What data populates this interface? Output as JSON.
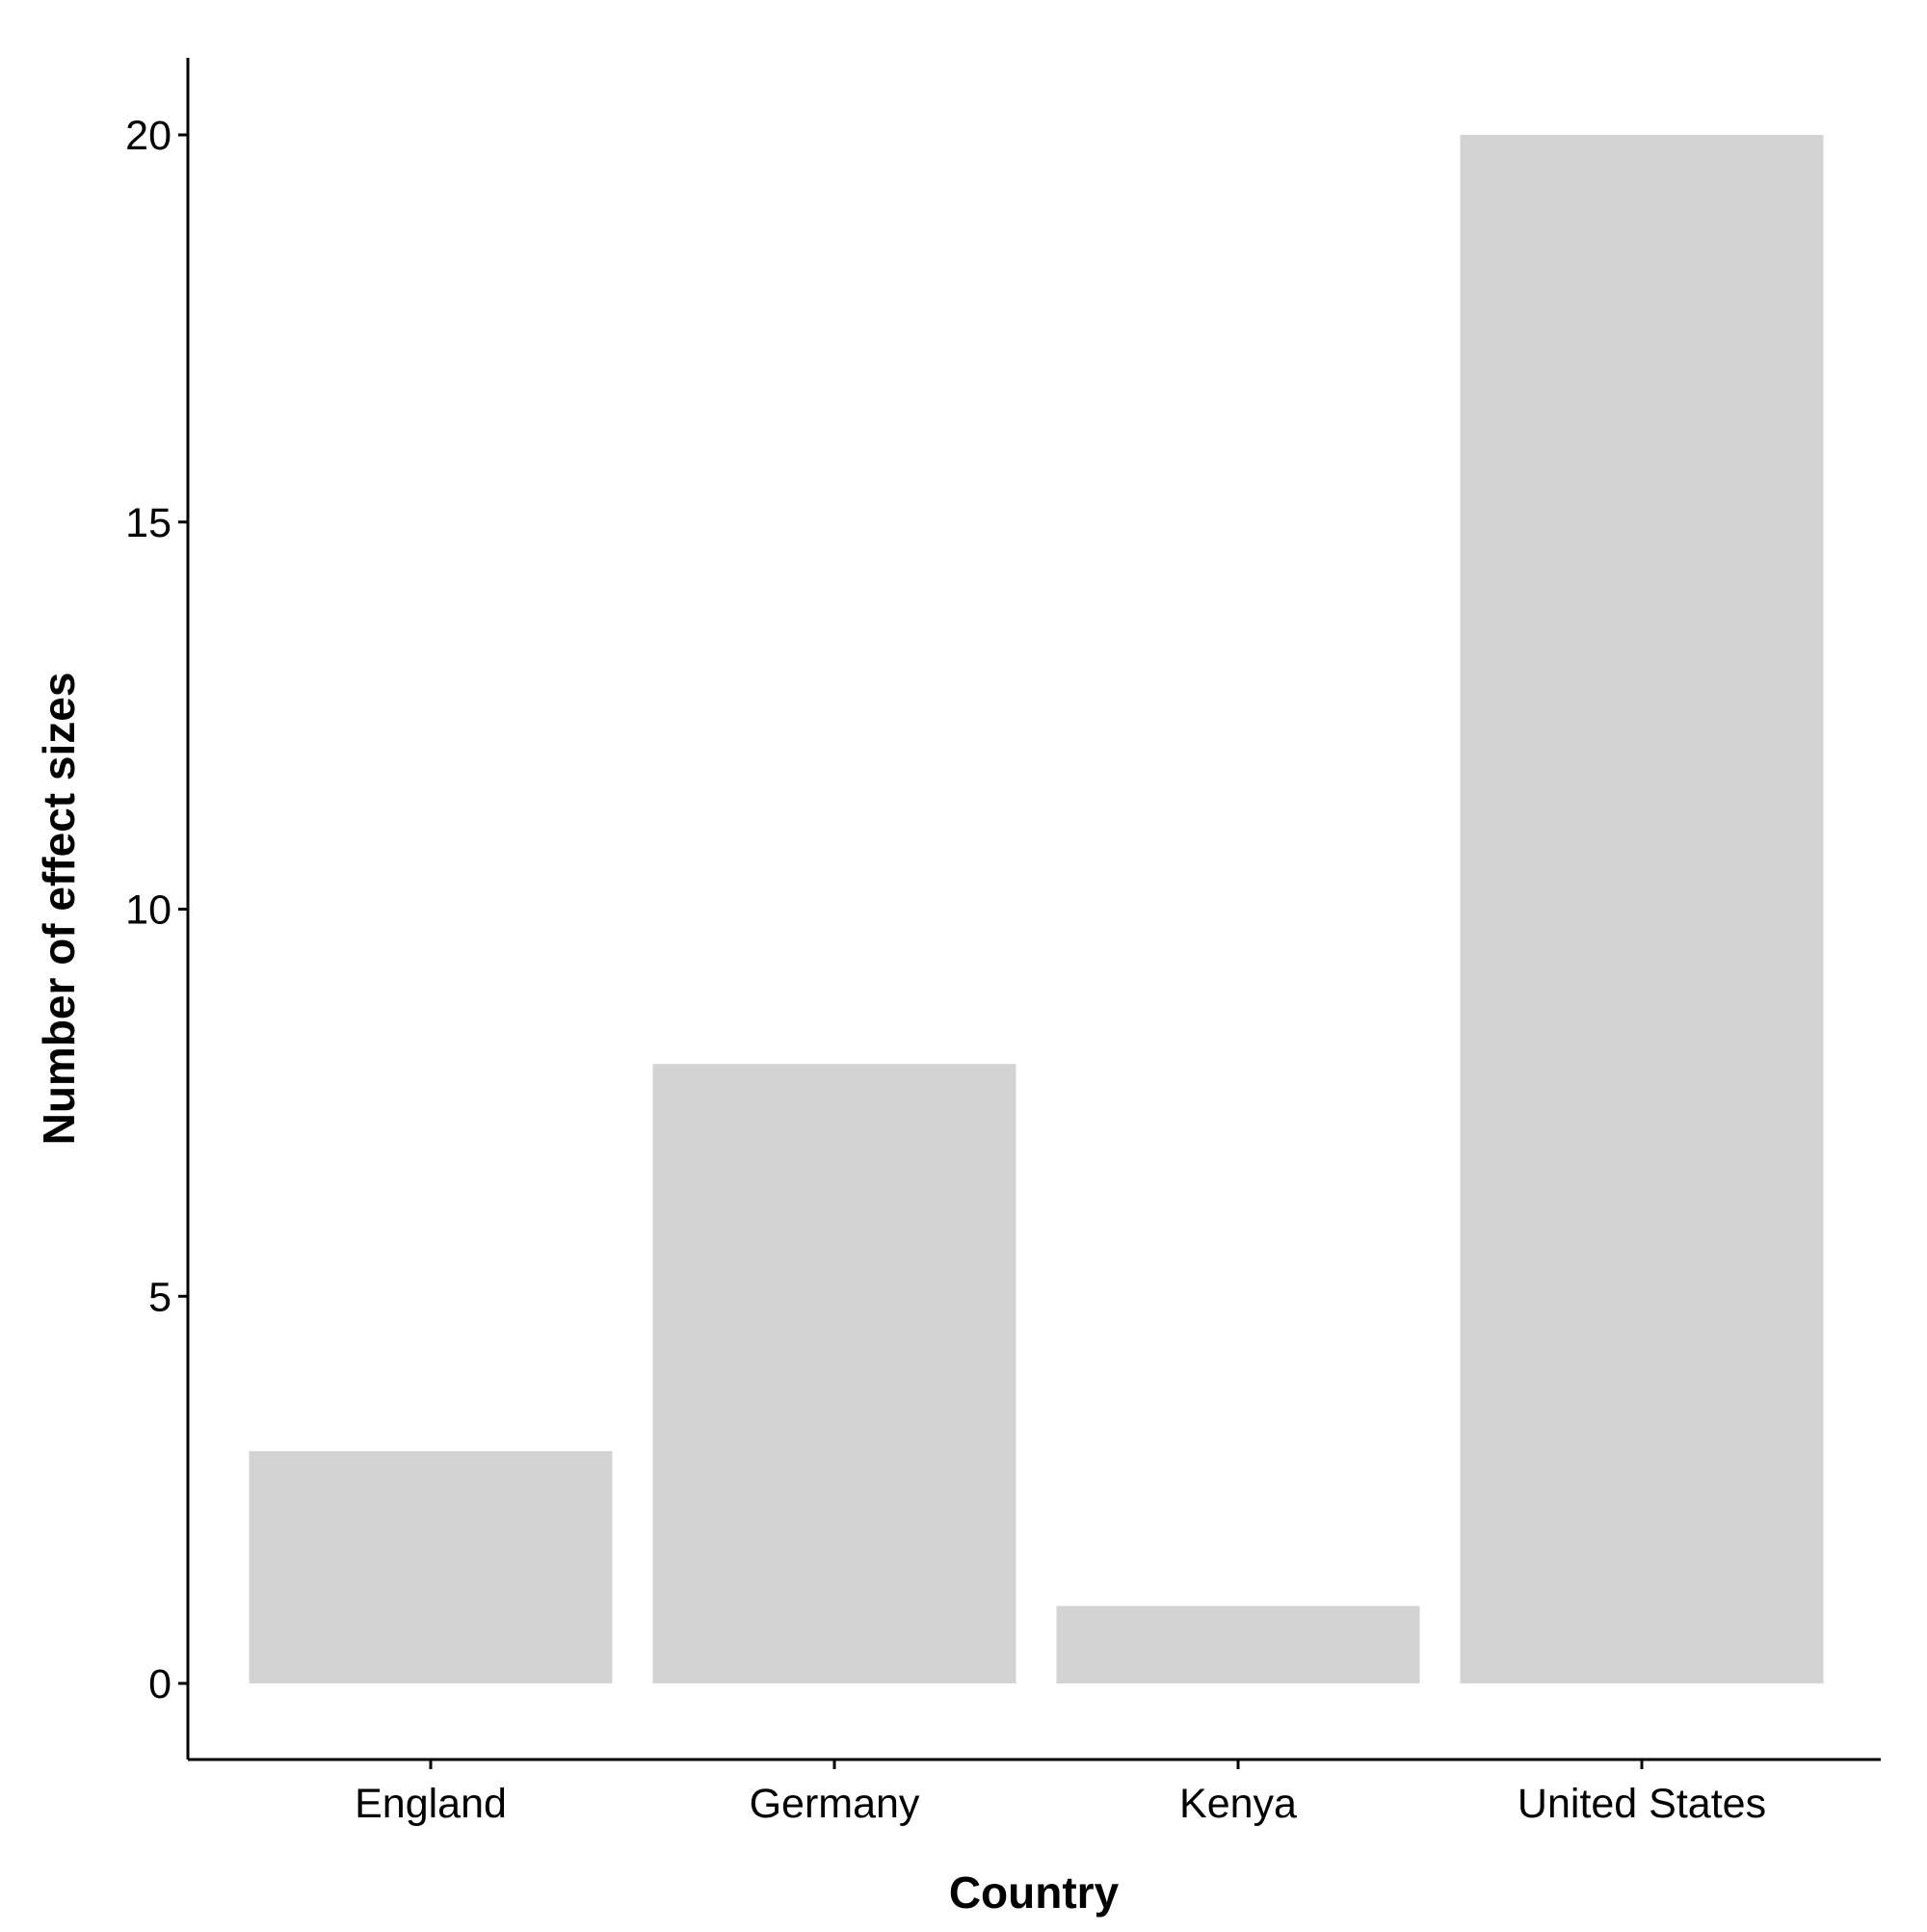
{
  "chart_data": {
    "type": "bar",
    "title": "",
    "xlabel": "Country",
    "ylabel": "Number of effect sizes",
    "categories": [
      "England",
      "Germany",
      "Kenya",
      "United States"
    ],
    "values": [
      3,
      8,
      1,
      20
    ],
    "ylim": [
      -1,
      21
    ],
    "yticks": [
      0,
      5,
      10,
      15,
      20
    ],
    "grid": false,
    "legend": "none",
    "bar_color": "#d3d3d3",
    "axis_color": "#000000"
  }
}
